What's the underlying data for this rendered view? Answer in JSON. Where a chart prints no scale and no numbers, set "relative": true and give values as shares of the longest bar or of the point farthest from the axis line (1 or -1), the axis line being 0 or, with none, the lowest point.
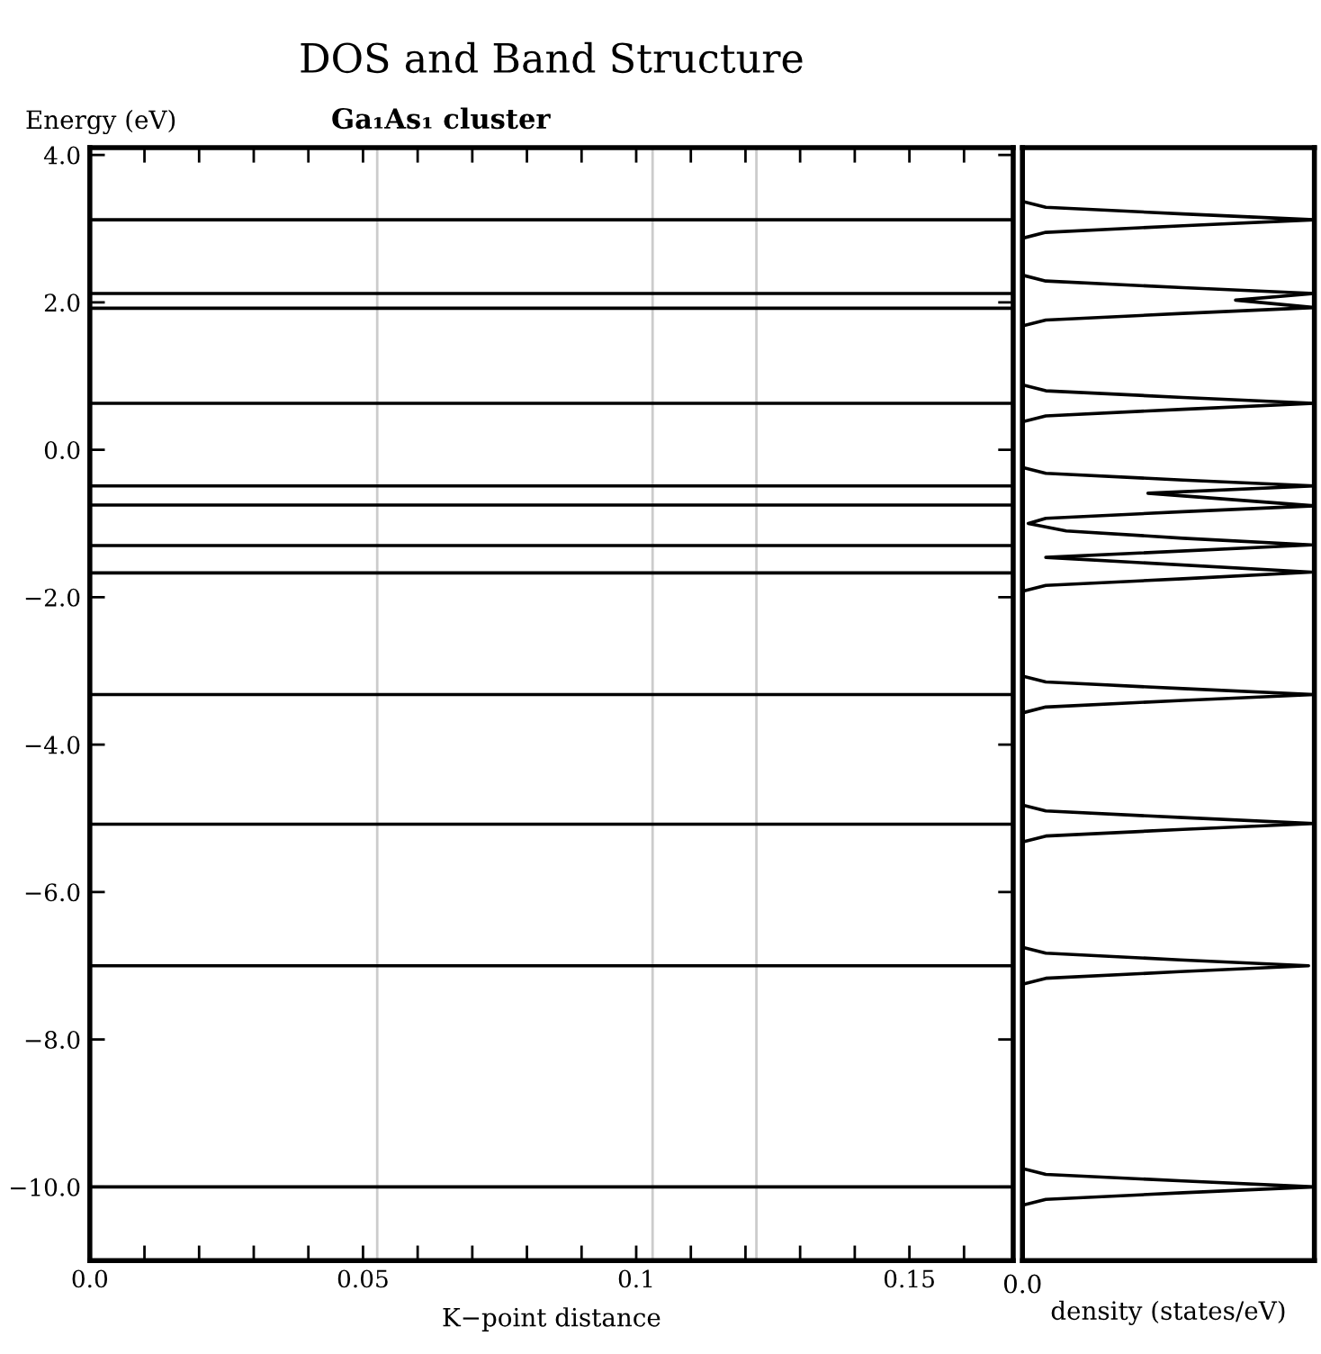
{
  "chart_data": [
    {
      "type": "line",
      "title": "DOS and Band Structure",
      "subtitle": "Ga₁As₁ cluster",
      "xlabel": "K−point distance",
      "ylabel": "Energy (eV)",
      "xlim": [
        0,
        0.169
      ],
      "ylim": [
        -11,
        4.1
      ],
      "xticks": [
        {
          "value": 0,
          "label": "0.0"
        },
        {
          "value": 0.01,
          "label": null
        },
        {
          "value": 0.02,
          "label": null
        },
        {
          "value": 0.03,
          "label": null
        },
        {
          "value": 0.04,
          "label": null
        },
        {
          "value": 0.05,
          "label": "0.05"
        },
        {
          "value": 0.06,
          "label": null
        },
        {
          "value": 0.07,
          "label": null
        },
        {
          "value": 0.08,
          "label": null
        },
        {
          "value": 0.09,
          "label": null
        },
        {
          "value": 0.1,
          "label": "0.1"
        },
        {
          "value": 0.11,
          "label": null
        },
        {
          "value": 0.12,
          "label": null
        },
        {
          "value": 0.13,
          "label": null
        },
        {
          "value": 0.14,
          "label": null
        },
        {
          "value": 0.15,
          "label": "0.15"
        },
        {
          "value": 0.16,
          "label": null
        }
      ],
      "yticks": [
        {
          "value": 4,
          "label": "4.0"
        },
        {
          "value": 2,
          "label": "2.0"
        },
        {
          "value": 0,
          "label": "0.0"
        },
        {
          "value": -2,
          "label": "−2.0"
        },
        {
          "value": -4,
          "label": "−4.0"
        },
        {
          "value": -6,
          "label": "−6.0"
        },
        {
          "value": -8,
          "label": "−8.0"
        },
        {
          "value": -10,
          "label": "−10.0"
        }
      ],
      "ref_lines": [
        {
          "axis": "x",
          "value": 0.0526,
          "color": "#cccccc"
        },
        {
          "axis": "x",
          "value": 0.103,
          "color": "#cccccc"
        },
        {
          "axis": "x",
          "value": 0.122,
          "color": "#cccccc"
        }
      ],
      "series": [
        {
          "color": "#000000",
          "x": [
            0,
            0.169
          ],
          "values": [
            3.12,
            3.12
          ]
        },
        {
          "color": "#000000",
          "x": [
            0,
            0.169
          ],
          "values": [
            2.12,
            2.12
          ]
        },
        {
          "color": "#000000",
          "x": [
            0,
            0.169
          ],
          "values": [
            1.92,
            1.92
          ]
        },
        {
          "color": "#000000",
          "x": [
            0,
            0.169
          ],
          "values": [
            0.63,
            0.63
          ]
        },
        {
          "color": "#000000",
          "x": [
            0,
            0.169
          ],
          "values": [
            -0.49,
            -0.49
          ]
        },
        {
          "color": "#000000",
          "x": [
            0,
            0.169
          ],
          "values": [
            -0.75,
            -0.75
          ]
        },
        {
          "color": "#000000",
          "x": [
            0,
            0.169
          ],
          "values": [
            -1.3,
            -1.3
          ]
        },
        {
          "color": "#000000",
          "x": [
            0,
            0.169
          ],
          "values": [
            -1.67,
            -1.67
          ]
        },
        {
          "color": "#000000",
          "x": [
            0,
            0.169
          ],
          "values": [
            -3.32,
            -3.32
          ]
        },
        {
          "color": "#000000",
          "x": [
            0,
            0.169
          ],
          "values": [
            -5.08,
            -5.08
          ]
        },
        {
          "color": "#000000",
          "x": [
            0,
            0.169
          ],
          "values": [
            -7.0,
            -7.0
          ]
        },
        {
          "color": "#000000",
          "x": [
            0,
            0.169
          ],
          "values": [
            -10.0,
            -10.0
          ]
        }
      ]
    },
    {
      "type": "line",
      "orientation": "horizontal",
      "relative": true,
      "xlabel": "density (states/eV)",
      "ylim": [
        -11,
        4.1
      ],
      "annotations": [
        "0.0"
      ],
      "series": [
        {
          "color": "#000000",
          "x": [
            4.1,
            3.37,
            3.29,
            3.2,
            3.12,
            3.04,
            2.95,
            2.87,
            2.37,
            2.29,
            2.2,
            2.12,
            2.03,
            1.93,
            1.85,
            1.76,
            1.68,
            0.88,
            0.8,
            0.71,
            0.63,
            0.55,
            0.46,
            0.38,
            -0.24,
            -0.32,
            -0.41,
            -0.49,
            -0.59,
            -0.76,
            -0.84,
            -0.93,
            -1.0,
            -1.1,
            -1.2,
            -1.29,
            -1.46,
            -1.66,
            -1.75,
            -1.84,
            -1.92,
            -3.07,
            -3.15,
            -3.24,
            -3.32,
            -3.4,
            -3.49,
            -3.57,
            -4.82,
            -4.9,
            -4.99,
            -5.07,
            -5.15,
            -5.24,
            -5.32,
            -6.75,
            -6.83,
            -6.92,
            -7.0,
            -7.08,
            -7.17,
            -7.25,
            -9.75,
            -9.83,
            -9.92,
            -10.0,
            -10.08,
            -10.17,
            -10.25,
            -11
          ],
          "values": [
            0,
            0,
            0.08,
            0.55,
            1.0,
            0.55,
            0.08,
            0,
            0,
            0.08,
            0.55,
            1.0,
            0.73,
            1.0,
            0.55,
            0.08,
            0,
            0,
            0.08,
            0.55,
            1.0,
            0.55,
            0.08,
            0,
            0,
            0.08,
            0.55,
            1.0,
            0.43,
            1.0,
            0.55,
            0.08,
            0.02,
            0.15,
            0.55,
            0.99,
            0.08,
            0.99,
            0.55,
            0.08,
            0,
            0,
            0.08,
            0.55,
            1.0,
            0.55,
            0.08,
            0,
            0,
            0.08,
            0.55,
            1.0,
            0.55,
            0.08,
            0,
            0,
            0.08,
            0.54,
            0.98,
            0.54,
            0.08,
            0,
            0,
            0.08,
            0.55,
            1.0,
            0.55,
            0.08,
            0,
            0
          ]
        }
      ]
    }
  ]
}
